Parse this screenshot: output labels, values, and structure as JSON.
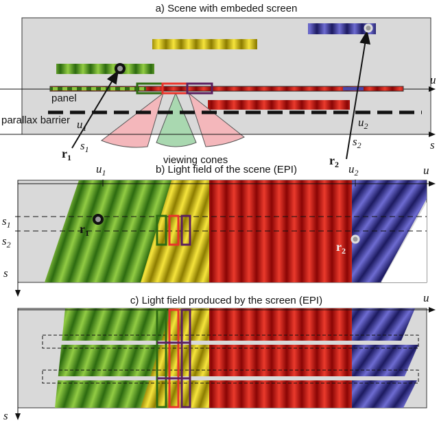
{
  "panel_a": {
    "title": "a) Scene with embeded screen",
    "u_axis": "u",
    "s_axis": "s",
    "panel": "panel",
    "barrier": "parallax barrier",
    "u1": {
      "main": "u",
      "sub": "1"
    },
    "s1": {
      "main": "s",
      "sub": "1"
    },
    "r1": {
      "main": "r",
      "sub": "1"
    },
    "u2": {
      "main": "u",
      "sub": "2"
    },
    "s2": {
      "main": "s",
      "sub": "2"
    },
    "r2": {
      "main": "r",
      "sub": "2"
    },
    "cones": "viewing cones"
  },
  "panel_b": {
    "title": "b) Light field of the scene (EPI)",
    "u_axis": "u",
    "s_axis": "s",
    "u1": {
      "main": "u",
      "sub": "1"
    },
    "u2": {
      "main": "u",
      "sub": "2"
    },
    "s1": {
      "main": "s",
      "sub": "1"
    },
    "s2": {
      "main": "s",
      "sub": "2"
    },
    "r1": {
      "main": "r",
      "sub": "1"
    },
    "r2": {
      "main": "r",
      "sub": "2"
    }
  },
  "panel_c": {
    "title": "c) Light field produced by the screen (EPI)",
    "u_axis": "u",
    "s_axis": "s"
  }
}
